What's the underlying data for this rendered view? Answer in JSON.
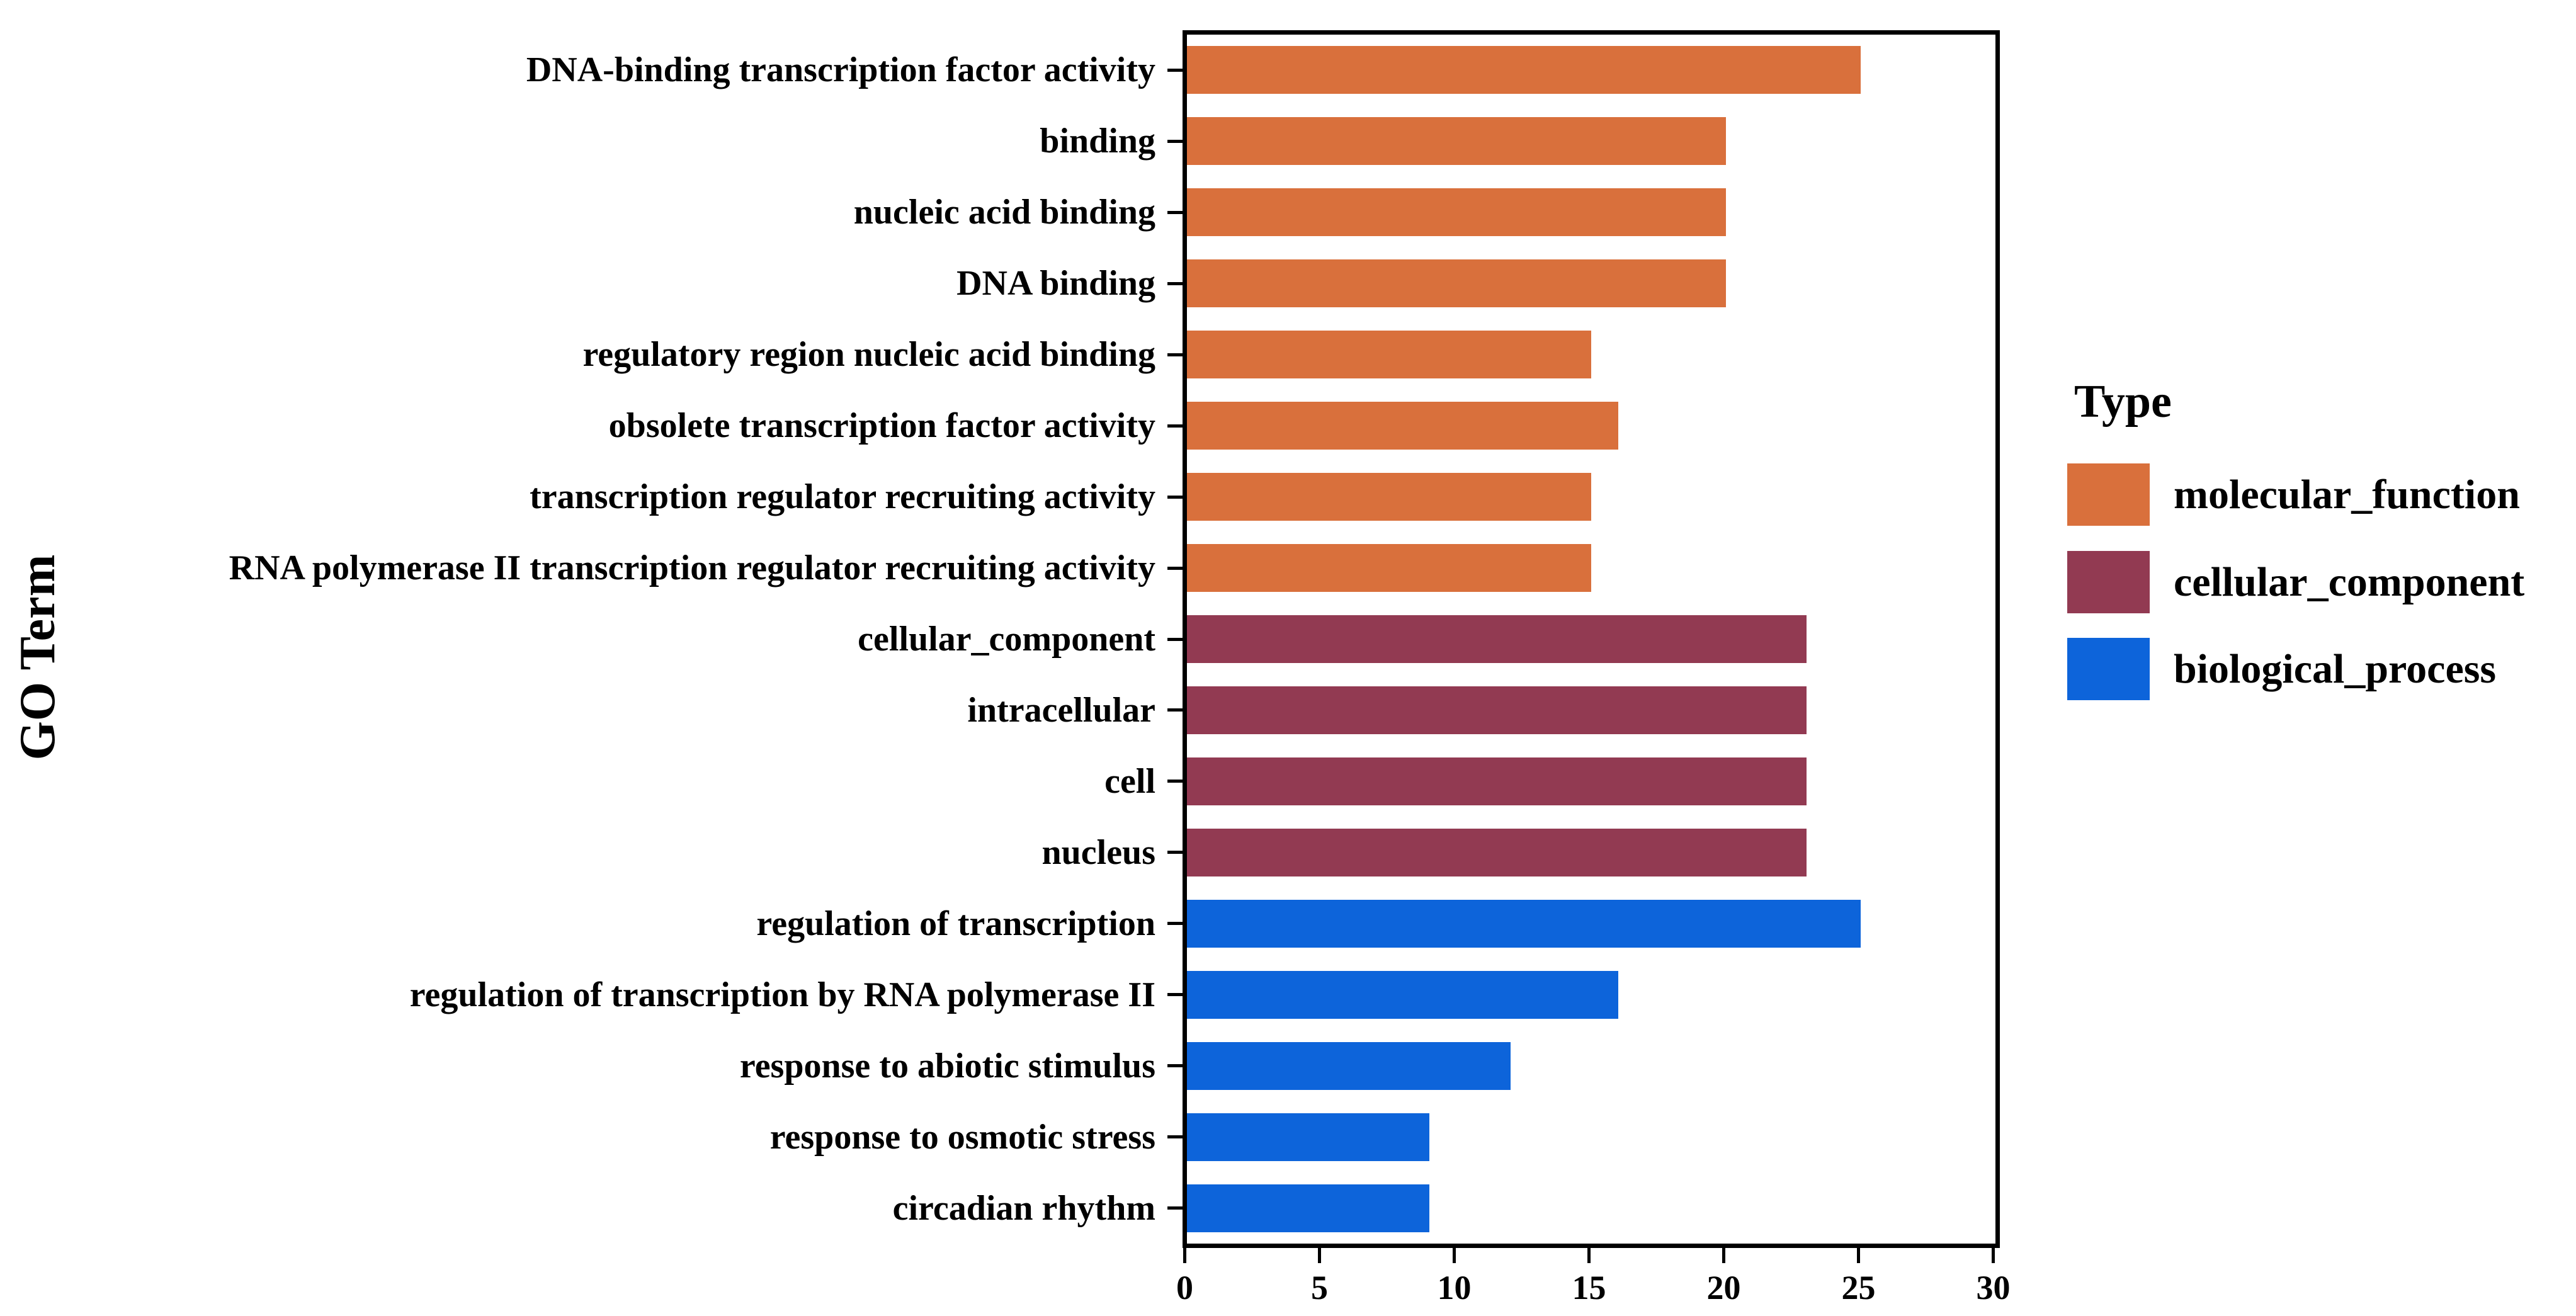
{
  "chart_data": {
    "type": "bar",
    "orientation": "horizontal",
    "title": "",
    "xlabel": "",
    "ylabel": "GO Term",
    "xlim": [
      0,
      30
    ],
    "xticks": [
      "0",
      "5",
      "10",
      "15",
      "20",
      "25",
      "30"
    ],
    "grid": true,
    "colors": {
      "molecular_function": "#D9703C",
      "cellular_component": "#923A52",
      "biological_process": "#0D64DA"
    },
    "legend": {
      "title": "Type",
      "position": "right",
      "entries": [
        {
          "label": "molecular_function",
          "color": "#D9703C"
        },
        {
          "label": "cellular_component",
          "color": "#923A52"
        },
        {
          "label": "biological_process",
          "color": "#0D64DA"
        }
      ]
    },
    "bars": [
      {
        "label": "DNA-binding transcription factor activity",
        "value": 25,
        "type": "molecular_function"
      },
      {
        "label": "binding",
        "value": 20,
        "type": "molecular_function"
      },
      {
        "label": "nucleic acid binding",
        "value": 20,
        "type": "molecular_function"
      },
      {
        "label": "DNA binding",
        "value": 20,
        "type": "molecular_function"
      },
      {
        "label": "regulatory region nucleic acid binding",
        "value": 15,
        "type": "molecular_function"
      },
      {
        "label": "obsolete transcription factor activity",
        "value": 16,
        "type": "molecular_function"
      },
      {
        "label": "transcription regulator recruiting activity",
        "value": 15,
        "type": "molecular_function"
      },
      {
        "label": "RNA polymerase II transcription regulator recruiting activity",
        "value": 15,
        "type": "molecular_function"
      },
      {
        "label": "cellular_component",
        "value": 23,
        "type": "cellular_component"
      },
      {
        "label": "intracellular",
        "value": 23,
        "type": "cellular_component"
      },
      {
        "label": "cell",
        "value": 23,
        "type": "cellular_component"
      },
      {
        "label": "nucleus",
        "value": 23,
        "type": "cellular_component"
      },
      {
        "label": "regulation of transcription",
        "value": 25,
        "type": "biological_process"
      },
      {
        "label": "regulation of transcription by RNA polymerase II",
        "value": 16,
        "type": "biological_process"
      },
      {
        "label": "response to abiotic stimulus",
        "value": 12,
        "type": "biological_process"
      },
      {
        "label": "response to osmotic stress",
        "value": 9,
        "type": "biological_process"
      },
      {
        "label": "circadian rhythm",
        "value": 9,
        "type": "biological_process"
      }
    ]
  }
}
